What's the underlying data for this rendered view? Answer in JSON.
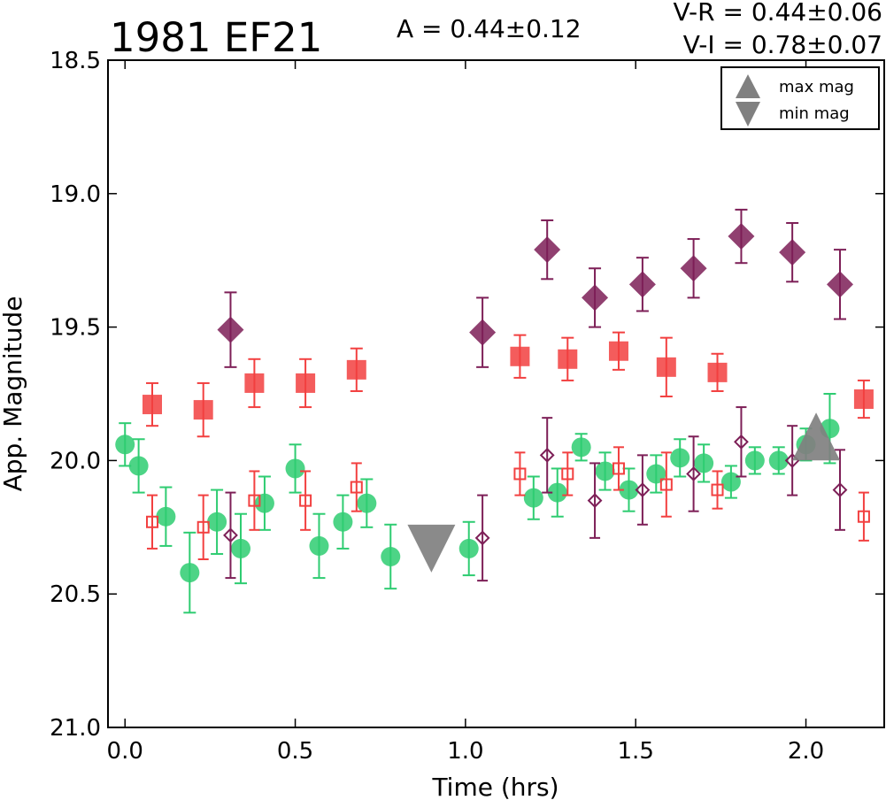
{
  "chart_data": {
    "type": "scatter",
    "title": "1981 EF21",
    "annotations": {
      "amplitude": "A  = 0.44±0.12",
      "v_r": "V-R = 0.44±0.06",
      "v_i": "V-I  = 0.78±0.07"
    },
    "xlabel": "Time (hrs)",
    "ylabel": "App. Magnitude",
    "xlim": [
      -0.05,
      2.23
    ],
    "ylim": [
      21.0,
      18.5
    ],
    "y_inverted": true,
    "x_ticks": [
      "0.0",
      "0.5",
      "1.0",
      "1.5",
      "2.0"
    ],
    "y_ticks": [
      "18.5",
      "19.0",
      "19.5",
      "20.0",
      "20.5",
      "21.0"
    ],
    "legend": {
      "placement": "top-right",
      "entries": [
        {
          "marker": "triangle-up",
          "label": "max mag"
        },
        {
          "marker": "triangle-down",
          "label": "min mag"
        }
      ]
    },
    "colors": {
      "green": "#2ecc71",
      "red": "#f24040",
      "purple": "#7d1f57",
      "gray": "#808080"
    },
    "series": [
      {
        "marker": "circle",
        "filled": true,
        "color": "#2ecc71",
        "points": [
          {
            "x": 0.0,
            "y": 19.94,
            "err": 0.08
          },
          {
            "x": 0.04,
            "y": 20.02,
            "err": 0.1
          },
          {
            "x": 0.12,
            "y": 20.21,
            "err": 0.11
          },
          {
            "x": 0.19,
            "y": 20.42,
            "err": 0.15
          },
          {
            "x": 0.27,
            "y": 20.23,
            "err": 0.12
          },
          {
            "x": 0.34,
            "y": 20.33,
            "err": 0.13
          },
          {
            "x": 0.41,
            "y": 20.16,
            "err": 0.1
          },
          {
            "x": 0.5,
            "y": 20.03,
            "err": 0.09
          },
          {
            "x": 0.57,
            "y": 20.32,
            "err": 0.12
          },
          {
            "x": 0.64,
            "y": 20.23,
            "err": 0.1
          },
          {
            "x": 0.71,
            "y": 20.16,
            "err": 0.09
          },
          {
            "x": 0.78,
            "y": 20.36,
            "err": 0.12
          },
          {
            "x": 1.01,
            "y": 20.33,
            "err": 0.1
          },
          {
            "x": 1.2,
            "y": 20.14,
            "err": 0.08
          },
          {
            "x": 1.27,
            "y": 20.12,
            "err": 0.09
          },
          {
            "x": 1.34,
            "y": 19.95,
            "err": 0.05
          },
          {
            "x": 1.41,
            "y": 20.04,
            "err": 0.07
          },
          {
            "x": 1.48,
            "y": 20.11,
            "err": 0.08
          },
          {
            "x": 1.56,
            "y": 20.05,
            "err": 0.07
          },
          {
            "x": 1.63,
            "y": 19.99,
            "err": 0.07
          },
          {
            "x": 1.7,
            "y": 20.01,
            "err": 0.07
          },
          {
            "x": 1.78,
            "y": 20.08,
            "err": 0.06
          },
          {
            "x": 1.85,
            "y": 20.0,
            "err": 0.05
          },
          {
            "x": 1.92,
            "y": 20.0,
            "err": 0.05
          },
          {
            "x": 2.0,
            "y": 19.94,
            "err": 0.06
          },
          {
            "x": 2.07,
            "y": 19.88,
            "err": 0.13
          }
        ]
      },
      {
        "marker": "square",
        "filled": true,
        "color": "#f24040",
        "points": [
          {
            "x": 0.08,
            "y": 19.79,
            "err": 0.08
          },
          {
            "x": 0.23,
            "y": 19.81,
            "err": 0.1
          },
          {
            "x": 0.38,
            "y": 19.71,
            "err": 0.09
          },
          {
            "x": 0.53,
            "y": 19.71,
            "err": 0.09
          },
          {
            "x": 0.68,
            "y": 19.66,
            "err": 0.08
          },
          {
            "x": 1.16,
            "y": 19.61,
            "err": 0.08
          },
          {
            "x": 1.3,
            "y": 19.62,
            "err": 0.08
          },
          {
            "x": 1.45,
            "y": 19.59,
            "err": 0.07
          },
          {
            "x": 1.59,
            "y": 19.65,
            "err": 0.11
          },
          {
            "x": 1.74,
            "y": 19.67,
            "err": 0.07
          },
          {
            "x": 2.17,
            "y": 19.77,
            "err": 0.07
          }
        ]
      },
      {
        "marker": "square",
        "filled": false,
        "color": "#f24040",
        "points": [
          {
            "x": 0.08,
            "y": 20.23,
            "err": 0.1
          },
          {
            "x": 0.23,
            "y": 20.25,
            "err": 0.12
          },
          {
            "x": 0.38,
            "y": 20.15,
            "err": 0.11
          },
          {
            "x": 0.53,
            "y": 20.15,
            "err": 0.11
          },
          {
            "x": 0.68,
            "y": 20.1,
            "err": 0.09
          },
          {
            "x": 1.16,
            "y": 20.05,
            "err": 0.08
          },
          {
            "x": 1.3,
            "y": 20.05,
            "err": 0.08
          },
          {
            "x": 1.45,
            "y": 20.03,
            "err": 0.08
          },
          {
            "x": 1.59,
            "y": 20.09,
            "err": 0.12
          },
          {
            "x": 1.74,
            "y": 20.11,
            "err": 0.07
          },
          {
            "x": 2.17,
            "y": 20.21,
            "err": 0.09
          }
        ]
      },
      {
        "marker": "diamond",
        "filled": true,
        "color": "#7d1f57",
        "points": [
          {
            "x": 0.31,
            "y": 19.51,
            "err": 0.14
          },
          {
            "x": 1.05,
            "y": 19.52,
            "err": 0.13
          },
          {
            "x": 1.24,
            "y": 19.21,
            "err": 0.11
          },
          {
            "x": 1.38,
            "y": 19.39,
            "err": 0.11
          },
          {
            "x": 1.52,
            "y": 19.34,
            "err": 0.1
          },
          {
            "x": 1.67,
            "y": 19.28,
            "err": 0.11
          },
          {
            "x": 1.81,
            "y": 19.16,
            "err": 0.1
          },
          {
            "x": 1.96,
            "y": 19.22,
            "err": 0.11
          },
          {
            "x": 2.1,
            "y": 19.34,
            "err": 0.13
          }
        ]
      },
      {
        "marker": "diamond",
        "filled": false,
        "color": "#7d1f57",
        "points": [
          {
            "x": 0.31,
            "y": 20.28,
            "err": 0.16
          },
          {
            "x": 1.05,
            "y": 20.29,
            "err": 0.16
          },
          {
            "x": 1.24,
            "y": 19.98,
            "err": 0.14
          },
          {
            "x": 1.38,
            "y": 20.15,
            "err": 0.14
          },
          {
            "x": 1.52,
            "y": 20.11,
            "err": 0.13
          },
          {
            "x": 1.67,
            "y": 20.05,
            "err": 0.14
          },
          {
            "x": 1.81,
            "y": 19.93,
            "err": 0.13
          },
          {
            "x": 1.96,
            "y": 20.0,
            "err": 0.13
          },
          {
            "x": 2.1,
            "y": 20.11,
            "err": 0.15
          }
        ]
      }
    ],
    "extrema_markers": [
      {
        "marker": "triangle-down",
        "label": "min mag",
        "x": 0.9,
        "y": 20.33
      },
      {
        "marker": "triangle-up",
        "label": "max mag",
        "x": 2.03,
        "y": 19.91
      }
    ]
  }
}
